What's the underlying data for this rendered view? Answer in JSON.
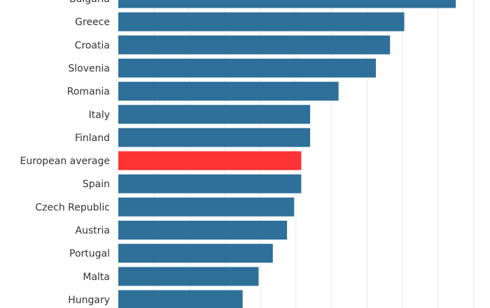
{
  "chart_data": {
    "type": "bar",
    "orientation": "horizontal",
    "title": "",
    "xlabel": "",
    "ylabel": "",
    "grid": true,
    "xlim": [
      0,
      10
    ],
    "categories": [
      "Bulgaria",
      "Greece",
      "Croatia",
      "Slovenia",
      "Romania",
      "Italy",
      "Finland",
      "European average",
      "Spain",
      "Czech Republic",
      "Austria",
      "Portugal",
      "Malta",
      "Hungary"
    ],
    "values": [
      9.5,
      8.05,
      7.65,
      7.25,
      6.2,
      5.4,
      5.4,
      5.15,
      5.15,
      4.95,
      4.75,
      4.35,
      3.95,
      3.5
    ],
    "highlight": "European average",
    "colors": {
      "bar": "#2e7099",
      "highlight": "#ff3333",
      "grid": "#ebebeb",
      "text": "#333333"
    }
  }
}
